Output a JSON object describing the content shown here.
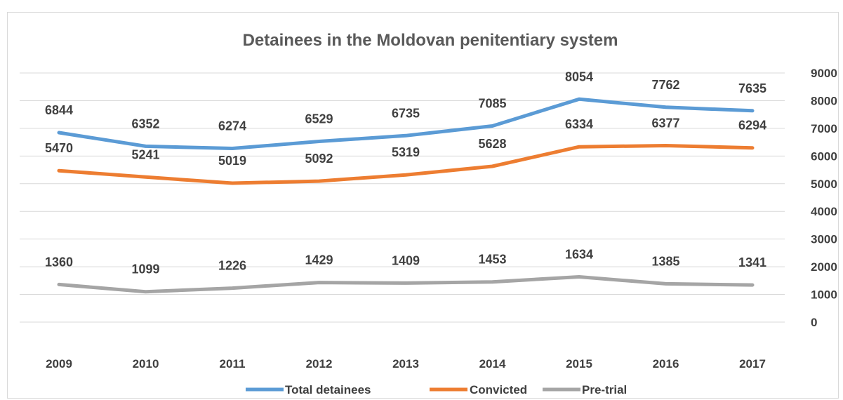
{
  "chart_data": {
    "type": "line",
    "title": "Detainees in the Moldovan penitentiary system",
    "xlabel": "",
    "ylabel": "",
    "categories": [
      "2009",
      "2010",
      "2011",
      "2012",
      "2013",
      "2014",
      "2015",
      "2016",
      "2017"
    ],
    "ylim": [
      0,
      9000
    ],
    "yticks": [
      "0",
      "1000",
      "2000",
      "3000",
      "4000",
      "5000",
      "6000",
      "7000",
      "8000",
      "9000"
    ],
    "y_axis_side": "right",
    "grid": true,
    "legend_position": "bottom",
    "series": [
      {
        "name": "Total detainees",
        "color": "#5b9bd5",
        "values": [
          6844,
          6352,
          6274,
          6529,
          6735,
          7085,
          8054,
          7762,
          7635
        ]
      },
      {
        "name": "Convicted",
        "color": "#ed7d31",
        "values": [
          5470,
          5241,
          5019,
          5092,
          5319,
          5628,
          6334,
          6377,
          6294
        ]
      },
      {
        "name": "Pre-trial",
        "color": "#a5a5a5",
        "values": [
          1360,
          1099,
          1226,
          1429,
          1409,
          1453,
          1634,
          1385,
          1341
        ]
      }
    ]
  }
}
